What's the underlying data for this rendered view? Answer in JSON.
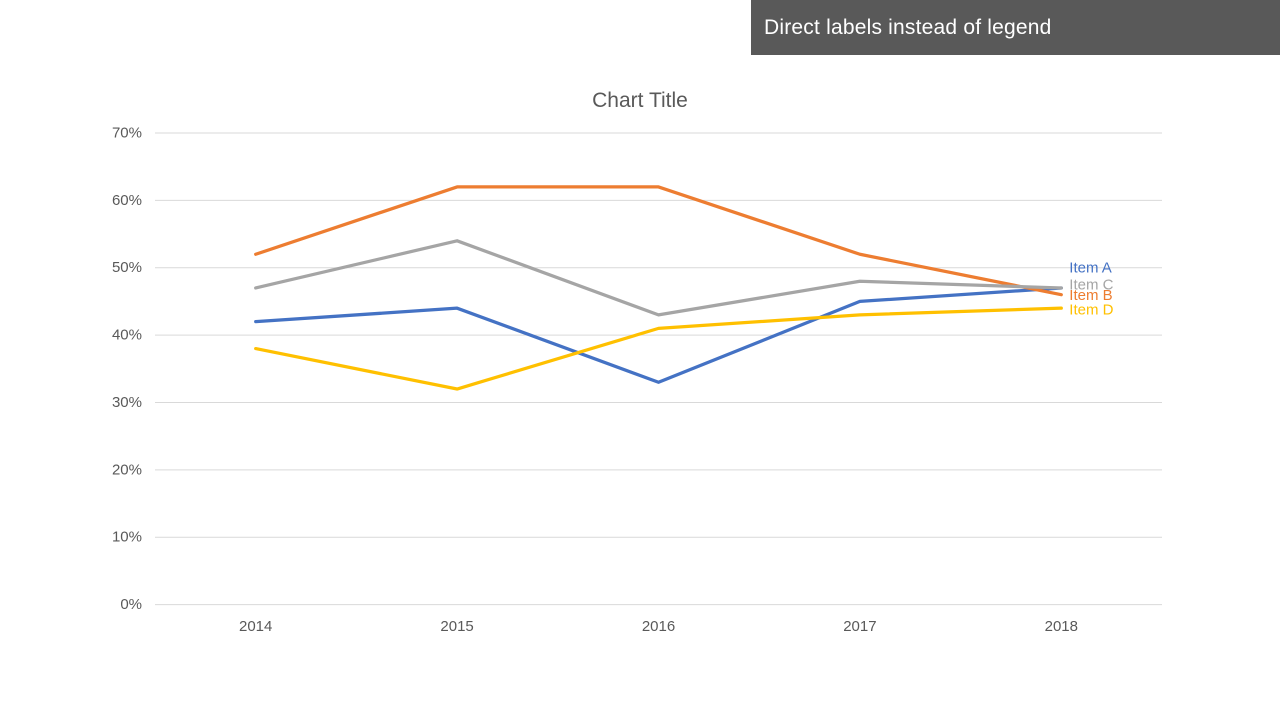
{
  "banner": {
    "text": "Direct labels instead of legend",
    "background": "#595959",
    "text_color": "#FFFFFF"
  },
  "chart": {
    "title": "Chart Title"
  },
  "chart_data": {
    "type": "line",
    "title": "Chart Title",
    "categories": [
      "2014",
      "2015",
      "2016",
      "2017",
      "2018"
    ],
    "series": [
      {
        "name": "Item A",
        "color": "#4472C4",
        "values": [
          42,
          44,
          33,
          45,
          47
        ],
        "label_dy": -20
      },
      {
        "name": "Item B",
        "color": "#ED7D31",
        "values": [
          52,
          62,
          62,
          52,
          46
        ],
        "label_dy": 1
      },
      {
        "name": "Item C",
        "color": "#A5A5A5",
        "values": [
          47,
          54,
          43,
          48,
          47
        ],
        "label_dy": -3
      },
      {
        "name": "Item D",
        "color": "#FFC000",
        "values": [
          38,
          32,
          41,
          43,
          44
        ],
        "label_dy": 2
      }
    ],
    "xlabel": "",
    "ylabel": "",
    "ylim": [
      0,
      70
    ],
    "y_tick_step": 10,
    "y_tick_labels": [
      "0%",
      "10%",
      "20%",
      "30%",
      "40%",
      "50%",
      "60%",
      "70%"
    ],
    "grid": true,
    "legend": "none",
    "direct_labels": true,
    "gridline_color": "#D9D9D9",
    "tick_label_color": "#595959",
    "line_width": 3.25
  }
}
